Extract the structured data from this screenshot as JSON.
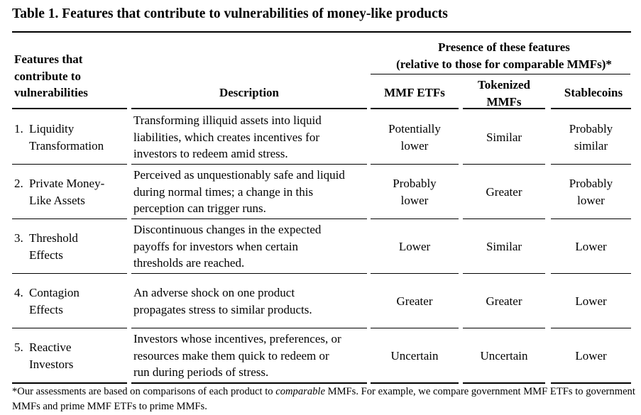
{
  "title": "Table 1. Features that contribute to vulnerabilities of money-like products",
  "header": {
    "features_line1": "Features that",
    "features_line2": "contribute to",
    "features_line3": "vulnerabilities",
    "description": "Description",
    "presence_line1": "Presence of these features",
    "presence_line2": "(relative to those for comparable MMFs)*",
    "col_mmf_etfs": "MMF ETFs",
    "col_tokenized_line1": "Tokenized",
    "col_tokenized_line2": "MMFs",
    "col_stablecoins": "Stablecoins"
  },
  "rows": [
    {
      "num": "1.",
      "feature": [
        "Liquidity",
        "Transformation"
      ],
      "description": [
        "Transforming illiquid assets into liquid",
        "liabilities, which creates incentives for",
        "investors to redeem amid stress."
      ],
      "mmf_etfs": [
        "Potentially",
        "lower"
      ],
      "tokenized": [
        "Similar"
      ],
      "stablecoins": [
        "Probably",
        "similar"
      ]
    },
    {
      "num": "2.",
      "feature": [
        "Private Money-",
        "Like Assets"
      ],
      "description": [
        "Perceived as unquestionably safe and liquid",
        "during normal times; a change in this",
        "perception can trigger runs."
      ],
      "mmf_etfs": [
        "Probably",
        "lower"
      ],
      "tokenized": [
        "Greater"
      ],
      "stablecoins": [
        "Probably",
        "lower"
      ]
    },
    {
      "num": "3.",
      "feature": [
        "Threshold",
        "Effects"
      ],
      "description": [
        "Discontinuous changes in the expected",
        "payoffs for investors when certain",
        "thresholds are reached."
      ],
      "mmf_etfs": [
        "Lower"
      ],
      "tokenized": [
        "Similar"
      ],
      "stablecoins": [
        "Lower"
      ]
    },
    {
      "num": "4.",
      "feature": [
        "Contagion",
        "Effects"
      ],
      "description": [
        "An adverse shock on one product",
        "propagates stress to similar products."
      ],
      "mmf_etfs": [
        "Greater"
      ],
      "tokenized": [
        "Greater"
      ],
      "stablecoins": [
        "Lower"
      ]
    },
    {
      "num": "5.",
      "feature": [
        "Reactive",
        "Investors"
      ],
      "description": [
        "Investors whose incentives, preferences, or",
        "resources make them quick to redeem or",
        "run during periods of stress."
      ],
      "mmf_etfs": [
        "Uncertain"
      ],
      "tokenized": [
        "Uncertain"
      ],
      "stablecoins": [
        "Lower"
      ]
    }
  ],
  "footnote": {
    "part1": "*Our assessments are based on comparisons of each product to ",
    "emph": "comparable",
    "part2": " MMFs.  For example, we compare government MMF ETFs to government MMFs and prime MMF ETFs to prime MMFs."
  }
}
